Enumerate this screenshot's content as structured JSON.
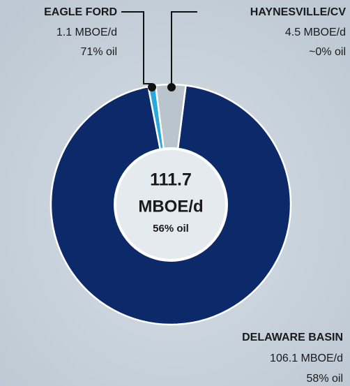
{
  "chart_data": {
    "type": "pie",
    "categories": [
      "DELAWARE BASIN",
      "EAGLE FORD",
      "HAYNESVILLE/CV"
    ],
    "values": [
      106.1,
      1.1,
      4.5
    ],
    "value_labels": [
      "106.1 MBOE/d",
      "1.1 MBOE/d",
      "4.5 MBOE/d"
    ],
    "oil_labels": [
      "58% oil",
      "71% oil",
      "~0% oil"
    ],
    "colors": [
      "#0c2a6a",
      "#27a8e0",
      "#b9c4cc"
    ],
    "total": 111.7,
    "total_unit": "MBOE/d",
    "total_oil": "56% oil"
  }
}
